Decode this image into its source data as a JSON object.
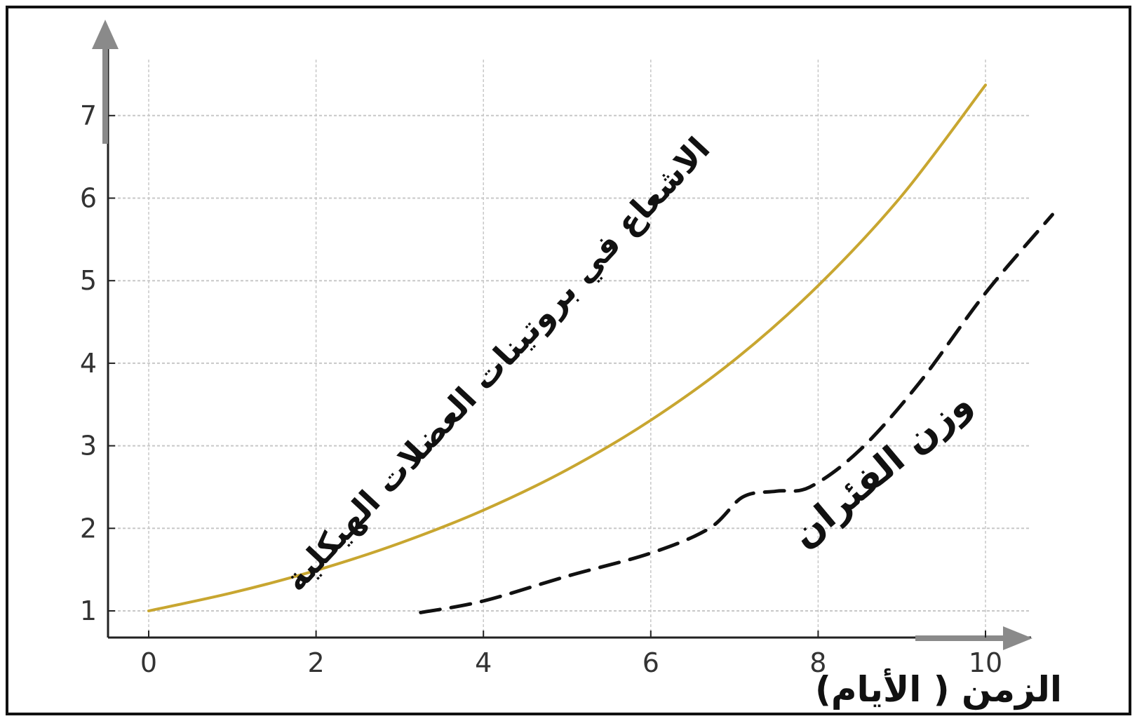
{
  "chart_data": {
    "type": "line",
    "title": "",
    "xlabel": "الزمن ( الأيام)",
    "ylabel": "",
    "xlim": [
      -0.5,
      10.5
    ],
    "ylim": [
      0.7,
      7.6
    ],
    "grid": true,
    "x_ticks": [
      0,
      2,
      4,
      6,
      8,
      10
    ],
    "y_ticks": [
      1,
      2,
      3,
      4,
      5,
      6,
      7
    ],
    "series": [
      {
        "name": "الاشعاع في بروتينات العضلات الهيكلية",
        "style": "solid",
        "color": "#c8a630",
        "x": [
          0,
          1,
          2,
          3,
          4,
          5,
          6,
          7,
          8,
          9,
          10
        ],
        "y": [
          1.0,
          1.22,
          1.49,
          1.82,
          2.22,
          2.71,
          3.31,
          4.04,
          4.94,
          6.03,
          7.37
        ]
      },
      {
        "name": "وزن الفئران",
        "style": "dashed",
        "color": "#111111",
        "x": [
          3.25,
          4.0,
          5.0,
          6.0,
          6.7,
          7.1,
          7.5,
          7.9,
          8.5,
          9.2,
          10.0,
          10.8
        ],
        "y": [
          0.98,
          1.12,
          1.42,
          1.7,
          2.0,
          2.38,
          2.45,
          2.5,
          2.95,
          3.75,
          4.85,
          5.8
        ]
      }
    ]
  },
  "colors": {
    "axis": "#222222",
    "grid": "#c8c8c8",
    "arrow": "#8a8a8a",
    "curve_solid": "#c8a630",
    "curve_dashed": "#111111"
  }
}
